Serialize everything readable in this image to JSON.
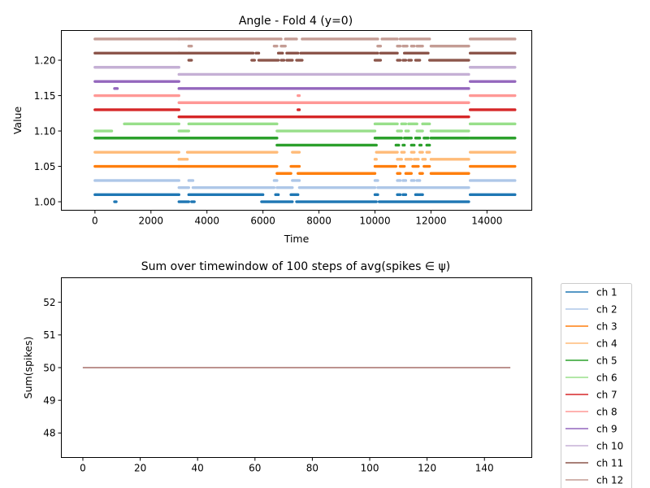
{
  "chart_data": [
    {
      "type": "scatter",
      "title": "Angle - Fold 4 (y=0)",
      "xlabel": "Time",
      "ylabel": "Value",
      "xlim": [
        -1200,
        15600
      ],
      "ylim": [
        0.988,
        1.242
      ],
      "xticks": [
        0,
        2000,
        4000,
        6000,
        8000,
        10000,
        12000,
        14000
      ],
      "xtick_labels": [
        "0",
        "2000",
        "4000",
        "6000",
        "8000",
        "10000",
        "12000",
        "14000"
      ],
      "yticks": [
        1.0,
        1.05,
        1.1,
        1.15,
        1.2
      ],
      "ytick_labels": [
        "1.00",
        "1.05",
        "1.10",
        "1.15",
        "1.20"
      ],
      "grid": false,
      "series": [
        {
          "name": "ch 1",
          "color": "#1f77b4",
          "lo": 1.0,
          "hi": 1.01,
          "hi_segments": [
            [
              0,
              3000
            ],
            [
              3350,
              6000
            ],
            [
              6450,
              6550
            ],
            [
              7000,
              7250
            ],
            [
              10000,
              10100
            ],
            [
              10800,
              10900
            ],
            [
              11000,
              11100
            ],
            [
              11450,
              11550
            ],
            [
              11600,
              11700
            ],
            [
              13400,
              15000
            ]
          ],
          "lo_segments": [
            [
              700,
              760
            ],
            [
              3000,
              3350
            ],
            [
              3450,
              3550
            ],
            [
              5950,
              7050
            ],
            [
              7200,
              10050
            ],
            [
              10150,
              13350
            ]
          ]
        },
        {
          "name": "ch 2",
          "color": "#aec7e8",
          "lo": 1.02,
          "hi": 1.03,
          "hi_segments": [
            [
              0,
              3000
            ],
            [
              3350,
              3500
            ],
            [
              6400,
              6500
            ],
            [
              7050,
              7300
            ],
            [
              10000,
              10100
            ],
            [
              10800,
              10900
            ],
            [
              11000,
              11100
            ],
            [
              11300,
              11400
            ],
            [
              11500,
              11600
            ],
            [
              13400,
              15000
            ]
          ],
          "lo_segments": [
            [
              3000,
              3350
            ],
            [
              3500,
              6400
            ],
            [
              6500,
              7050
            ],
            [
              7300,
              10000
            ],
            [
              10100,
              13350
            ]
          ]
        },
        {
          "name": "ch 3",
          "color": "#ff7f0e",
          "lo": 1.04,
          "hi": 1.05,
          "hi_segments": [
            [
              0,
              3000
            ],
            [
              3000,
              6500
            ],
            [
              7000,
              7300
            ],
            [
              10000,
              10750
            ],
            [
              10900,
              11050
            ],
            [
              11350,
              11550
            ],
            [
              11750,
              11950
            ],
            [
              13400,
              15000
            ]
          ],
          "lo_segments": [
            [
              6500,
              7000
            ],
            [
              7250,
              10000
            ],
            [
              10800,
              10900
            ],
            [
              11100,
              11300
            ],
            [
              11600,
              11700
            ],
            [
              12000,
              13350
            ]
          ]
        },
        {
          "name": "ch 4",
          "color": "#ffbb78",
          "lo": 1.06,
          "hi": 1.07,
          "hi_segments": [
            [
              0,
              3000
            ],
            [
              3300,
              6500
            ],
            [
              7050,
              7300
            ],
            [
              10050,
              10800
            ],
            [
              10950,
              11050
            ],
            [
              11300,
              11400
            ],
            [
              11600,
              11700
            ],
            [
              11850,
              11950
            ],
            [
              13400,
              15000
            ]
          ],
          "lo_segments": [
            [
              3000,
              3300
            ],
            [
              10000,
              10050
            ],
            [
              10800,
              10950
            ],
            [
              11100,
              11300
            ],
            [
              11400,
              11550
            ],
            [
              11700,
              11800
            ],
            [
              12000,
              13350
            ]
          ]
        },
        {
          "name": "ch 5",
          "color": "#2ca02c",
          "lo": 1.08,
          "hi": 1.09,
          "hi_segments": [
            [
              0,
              3000
            ],
            [
              3000,
              6500
            ],
            [
              10000,
              10950
            ],
            [
              11050,
              11300
            ],
            [
              11450,
              11600
            ],
            [
              11750,
              11900
            ],
            [
              12000,
              13350
            ],
            [
              13400,
              15000
            ]
          ],
          "lo_segments": [
            [
              6500,
              10050
            ],
            [
              10750,
              10850
            ],
            [
              11000,
              11050
            ],
            [
              11300,
              11400
            ],
            [
              11600,
              11650
            ],
            [
              11850,
              11950
            ]
          ]
        },
        {
          "name": "ch 6",
          "color": "#98df8a",
          "lo": 1.1,
          "hi": 1.11,
          "hi_segments": [
            [
              1050,
              3000
            ],
            [
              3350,
              6500
            ],
            [
              10000,
              10800
            ],
            [
              10950,
              11100
            ],
            [
              11200,
              11500
            ],
            [
              11700,
              11950
            ],
            [
              13400,
              15000
            ]
          ],
          "lo_segments": [
            [
              0,
              600
            ],
            [
              3000,
              3350
            ],
            [
              6500,
              10000
            ],
            [
              10800,
              10950
            ],
            [
              11100,
              11200
            ],
            [
              11500,
              11700
            ],
            [
              12000,
              13350
            ]
          ]
        },
        {
          "name": "ch 7",
          "color": "#d62728",
          "lo": 1.12,
          "hi": 1.13,
          "hi_segments": [
            [
              0,
              3000
            ],
            [
              7250,
              7300
            ],
            [
              13400,
              15000
            ]
          ],
          "lo_segments": [
            [
              3000,
              13350
            ]
          ]
        },
        {
          "name": "ch 8",
          "color": "#ff9896",
          "lo": 1.14,
          "hi": 1.15,
          "hi_segments": [
            [
              0,
              3000
            ],
            [
              7250,
              7300
            ],
            [
              13400,
              15000
            ]
          ],
          "lo_segments": [
            [
              3000,
              13350
            ]
          ]
        },
        {
          "name": "ch 9",
          "color": "#9467bd",
          "lo": 1.16,
          "hi": 1.17,
          "hi_segments": [
            [
              0,
              3000
            ],
            [
              13400,
              15000
            ]
          ],
          "lo_segments": [
            [
              700,
              800
            ],
            [
              3000,
              13350
            ]
          ]
        },
        {
          "name": "ch 10",
          "color": "#c5b0d5",
          "lo": 1.18,
          "hi": 1.19,
          "hi_segments": [
            [
              0,
              3000
            ],
            [
              13400,
              15000
            ]
          ],
          "lo_segments": [
            [
              3000,
              13350
            ]
          ]
        },
        {
          "name": "ch 11",
          "color": "#8c564b",
          "lo": 1.2,
          "hi": 1.21,
          "hi_segments": [
            [
              0,
              3000
            ],
            [
              3000,
              5650
            ],
            [
              5750,
              5850
            ],
            [
              6550,
              6700
            ],
            [
              6850,
              7250
            ],
            [
              7350,
              10000
            ],
            [
              10050,
              10100
            ],
            [
              10200,
              10800
            ],
            [
              11050,
              11900
            ],
            [
              13400,
              15000
            ]
          ],
          "lo_segments": [
            [
              3350,
              3450
            ],
            [
              5600,
              5700
            ],
            [
              5850,
              6550
            ],
            [
              6650,
              6750
            ],
            [
              6850,
              7050
            ],
            [
              7200,
              7400
            ],
            [
              10000,
              10200
            ],
            [
              10800,
              10900
            ],
            [
              11000,
              11100
            ],
            [
              11200,
              11300
            ],
            [
              11450,
              11600
            ],
            [
              11950,
              13350
            ]
          ]
        },
        {
          "name": "ch 12",
          "color": "#c49c94",
          "lo": 1.22,
          "hi": 1.23,
          "hi_segments": [
            [
              0,
              3000
            ],
            [
              3000,
              6650
            ],
            [
              6800,
              7200
            ],
            [
              7400,
              10100
            ],
            [
              10250,
              10800
            ],
            [
              10900,
              11950
            ],
            [
              13400,
              15000
            ]
          ],
          "lo_segments": [
            [
              3350,
              3450
            ],
            [
              6400,
              6500
            ],
            [
              6650,
              6800
            ],
            [
              10100,
              10200
            ],
            [
              10800,
              10900
            ],
            [
              11000,
              11150
            ],
            [
              11300,
              11400
            ],
            [
              11500,
              11700
            ],
            [
              12000,
              13350
            ]
          ]
        }
      ]
    },
    {
      "type": "line",
      "title": "Sum over timewindow of 100 steps of avg(spikes ∈ ψ)",
      "xlabel": "",
      "ylabel": "Sum(spikes)",
      "xlim": [
        -7.5,
        156.5
      ],
      "ylim": [
        47.25,
        52.75
      ],
      "xticks": [
        0,
        20,
        40,
        60,
        80,
        100,
        120,
        140
      ],
      "xtick_labels": [
        "0",
        "20",
        "40",
        "60",
        "80",
        "100",
        "120",
        "140"
      ],
      "yticks": [
        48,
        49,
        50,
        51,
        52
      ],
      "ytick_labels": [
        "48",
        "49",
        "50",
        "51",
        "52"
      ],
      "grid": false,
      "legend_position": "outside right",
      "x_range": [
        0,
        149
      ],
      "series": [
        {
          "name": "ch 1",
          "color": "#1f77b4",
          "value": 50
        },
        {
          "name": "ch 2",
          "color": "#aec7e8",
          "value": 50
        },
        {
          "name": "ch 3",
          "color": "#ff7f0e",
          "value": 50
        },
        {
          "name": "ch 4",
          "color": "#ffbb78",
          "value": 50
        },
        {
          "name": "ch 5",
          "color": "#2ca02c",
          "value": 50
        },
        {
          "name": "ch 6",
          "color": "#98df8a",
          "value": 50
        },
        {
          "name": "ch 7",
          "color": "#d62728",
          "value": 50
        },
        {
          "name": "ch 8",
          "color": "#ff9896",
          "value": 50
        },
        {
          "name": "ch 9",
          "color": "#9467bd",
          "value": 50
        },
        {
          "name": "ch 10",
          "color": "#c5b0d5",
          "value": 50
        },
        {
          "name": "ch 11",
          "color": "#8c564b",
          "value": 50
        },
        {
          "name": "ch 12",
          "color": "#c49c94",
          "value": 50
        }
      ]
    }
  ]
}
